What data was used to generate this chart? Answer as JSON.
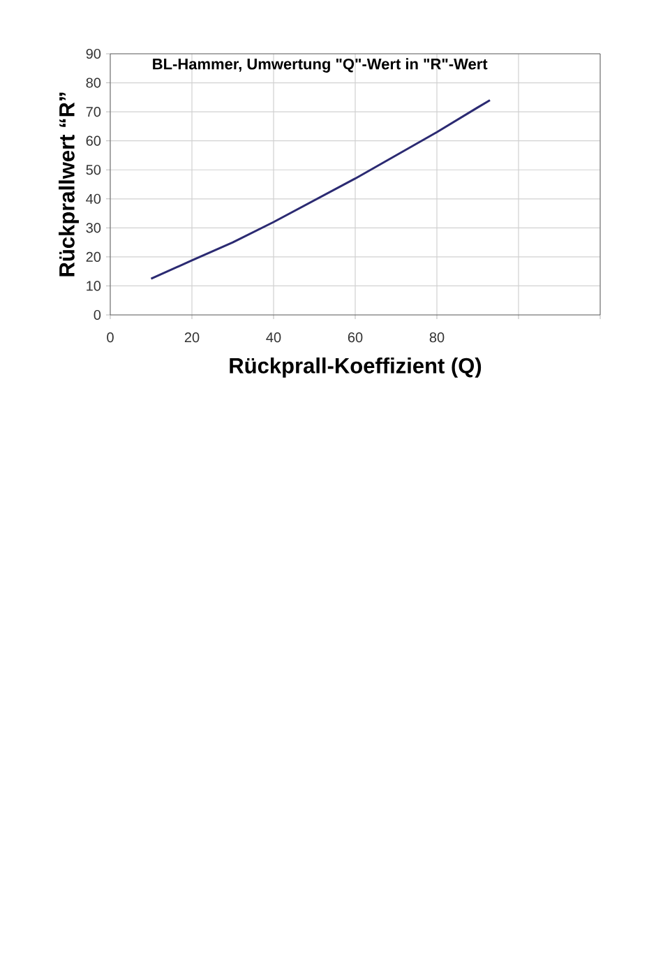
{
  "chart_data": {
    "type": "line",
    "title": "BL-Hammer,  Umwertung  \"Q\"-Wert in \"R\"-Wert",
    "xlabel": "Rückprall-Koeffizient (Q)",
    "ylabel": "Rückprallwert “R”",
    "series": [
      {
        "color": "#2b2a72",
        "x": [
          10,
          20,
          30,
          40,
          50,
          60,
          70,
          80,
          90,
          93
        ],
        "values": [
          12.5,
          18.8,
          25,
          32,
          39.5,
          47,
          55,
          63,
          71.5,
          74
        ]
      }
    ],
    "xlim": [
      0,
      120
    ],
    "ylim": [
      0,
      90
    ],
    "xticks": [
      0,
      20,
      40,
      60,
      80,
      {
        "value": 100,
        "label": null
      },
      {
        "value": 120,
        "label": null
      }
    ],
    "yticks": [
      0,
      10,
      20,
      30,
      40,
      50,
      60,
      70,
      80,
      90
    ],
    "grid": true,
    "marker": "none",
    "line_style": "solid"
  }
}
